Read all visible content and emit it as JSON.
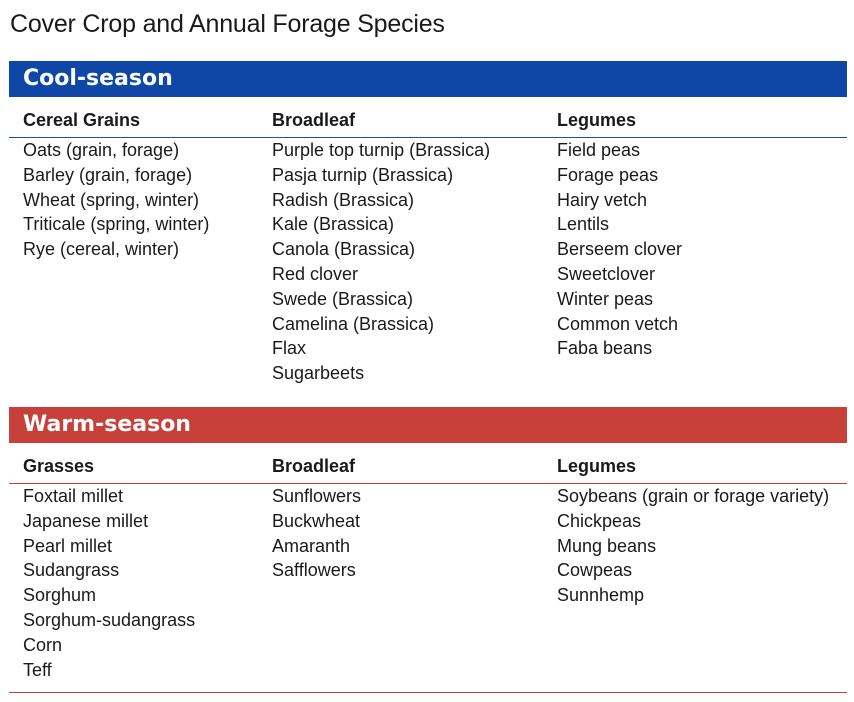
{
  "title": "Cover Crop and Annual Forage Species",
  "colors": {
    "cool_band": "#0f47a7",
    "warm_band": "#c8403a"
  },
  "cool": {
    "label": "Cool-season",
    "headers": [
      "Cereal Grains",
      "Broadleaf",
      "Legumes"
    ],
    "columns": [
      [
        "Oats (grain, forage)",
        "Barley (grain, forage)",
        "Wheat (spring, winter)",
        "Triticale (spring, winter)",
        "Rye (cereal, winter)"
      ],
      [
        "Purple top turnip (Brassica)",
        "Pasja turnip (Brassica)",
        "Radish (Brassica)",
        "Kale (Brassica)",
        "Canola (Brassica)",
        "Red clover",
        "Swede (Brassica)",
        "Camelina (Brassica)",
        "Flax",
        "Sugarbeets"
      ],
      [
        "Field peas",
        "Forage peas",
        "Hairy vetch",
        "Lentils",
        "Berseem clover",
        "Sweetclover",
        "Winter peas",
        "Common vetch",
        "Faba beans"
      ]
    ]
  },
  "warm": {
    "label": "Warm-season",
    "headers": [
      "Grasses",
      "Broadleaf",
      "Legumes"
    ],
    "columns": [
      [
        "Foxtail millet",
        "Japanese millet",
        "Pearl millet",
        "Sudangrass",
        "Sorghum",
        "Sorghum-sudangrass",
        "Corn",
        "Teff"
      ],
      [
        "Sunflowers",
        "Buckwheat",
        "Amaranth",
        "Safflowers"
      ],
      [
        "Soybeans (grain or forage variety)",
        "Chickpeas",
        "Mung beans",
        "Cowpeas",
        "Sunnhemp"
      ]
    ]
  }
}
